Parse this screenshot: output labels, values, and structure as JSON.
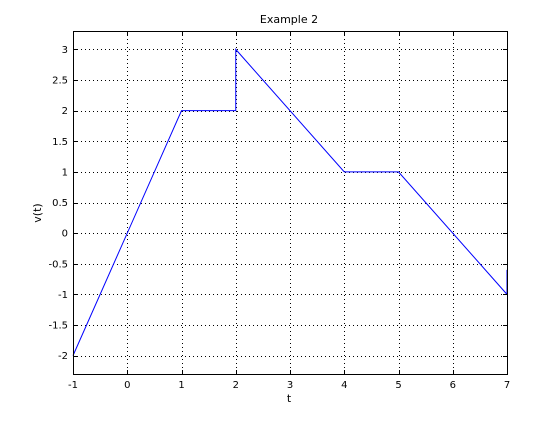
{
  "chart_data": {
    "type": "line",
    "title": "Example 2",
    "xlabel": "t",
    "ylabel": "v(t)",
    "xlim": [
      -1,
      7
    ],
    "ylim": [
      -2.3,
      3.3
    ],
    "xticks": [
      -1,
      0,
      1,
      2,
      3,
      4,
      5,
      6,
      7
    ],
    "xtick_labels": [
      "-1",
      "0",
      "1",
      "2",
      "3",
      "4",
      "5",
      "6",
      "7"
    ],
    "yticks": [
      -2,
      -1.5,
      -1,
      -0.5,
      0,
      0.5,
      1,
      1.5,
      2,
      2.5,
      3
    ],
    "ytick_labels": [
      "-2",
      "-1.5",
      "-1",
      "-0.5",
      "0",
      "0.5",
      "1",
      "1.5",
      "2",
      "2.5",
      "3"
    ],
    "grid": true,
    "series": [
      {
        "color": "#0000ff",
        "x": [
          -1,
          1,
          2,
          2,
          4,
          5,
          7,
          7
        ],
        "y": [
          -2,
          2,
          2,
          3,
          1,
          1,
          -1,
          -0.6
        ]
      }
    ]
  }
}
